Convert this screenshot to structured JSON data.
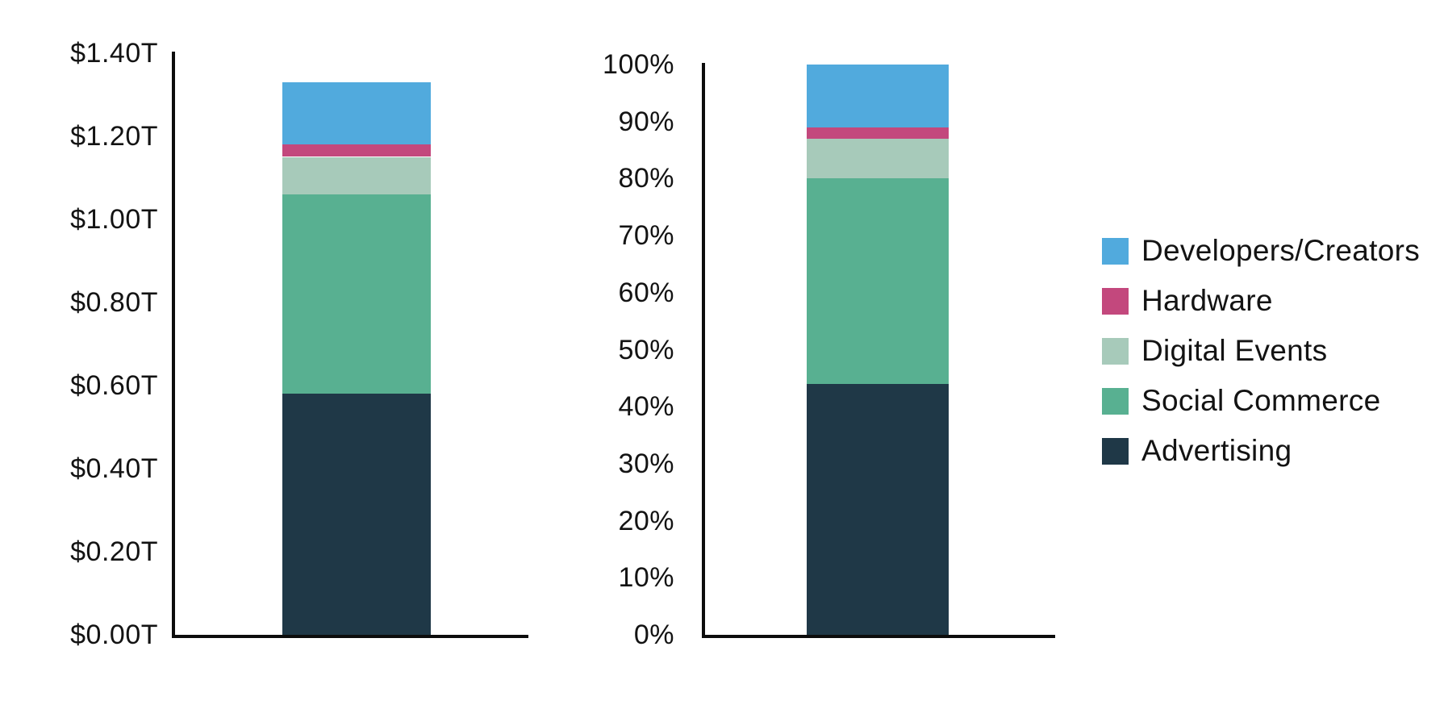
{
  "background": "#ffffff",
  "colors": {
    "advertising": "#1f3847",
    "social_commerce": "#58b091",
    "digital_events": "#a7caba",
    "hardware": "#c3487d",
    "developers_creators": "#51aadd",
    "axis": "#0c0c0c",
    "text": "#131313"
  },
  "legend": {
    "position": "right",
    "items": [
      {
        "label": "Developers/Creators",
        "color_key": "developers_creators"
      },
      {
        "label": "Hardware",
        "color_key": "hardware"
      },
      {
        "label": "Digital Events",
        "color_key": "digital_events"
      },
      {
        "label": "Social Commerce",
        "color_key": "social_commerce"
      },
      {
        "label": "Advertising",
        "color_key": "advertising"
      }
    ]
  },
  "chart_data": [
    {
      "type": "bar",
      "stacked": true,
      "unit": "USD trillions",
      "title": "",
      "xlabel": "",
      "ylabel": "",
      "categories": [
        ""
      ],
      "series": [
        {
          "name": "Advertising",
          "color_key": "advertising",
          "values": [
            0.58
          ]
        },
        {
          "name": "Social Commerce",
          "color_key": "social_commerce",
          "values": [
            0.48
          ]
        },
        {
          "name": "Digital Events",
          "color_key": "digital_events",
          "values": [
            0.09
          ]
        },
        {
          "name": "Hardware",
          "color_key": "hardware",
          "values": [
            0.03
          ]
        },
        {
          "name": "Developers/Creators",
          "color_key": "developers_creators",
          "values": [
            0.15
          ]
        }
      ],
      "total": 1.33,
      "ylim": [
        0,
        1.4
      ],
      "yticks": [
        {
          "label": "$1.40T",
          "value": 1.4
        },
        {
          "label": "$1.20T",
          "value": 1.2
        },
        {
          "label": "$1.00T",
          "value": 1.0
        },
        {
          "label": "$0.80T",
          "value": 0.8
        },
        {
          "label": "$0.60T",
          "value": 0.6
        },
        {
          "label": "$0.40T",
          "value": 0.4
        },
        {
          "label": "$0.20T",
          "value": 0.2
        },
        {
          "label": "$0.00T",
          "value": 0.0
        }
      ],
      "grid": false,
      "legend_position": "right"
    },
    {
      "type": "bar",
      "stacked": true,
      "unit": "percent",
      "title": "",
      "xlabel": "",
      "ylabel": "",
      "categories": [
        ""
      ],
      "series": [
        {
          "name": "Advertising",
          "color_key": "advertising",
          "values": [
            44
          ]
        },
        {
          "name": "Social Commerce",
          "color_key": "social_commerce",
          "values": [
            36
          ]
        },
        {
          "name": "Digital Events",
          "color_key": "digital_events",
          "values": [
            7
          ]
        },
        {
          "name": "Hardware",
          "color_key": "hardware",
          "values": [
            2
          ]
        },
        {
          "name": "Developers/Creators",
          "color_key": "developers_creators",
          "values": [
            11
          ]
        }
      ],
      "total": 100,
      "ylim": [
        0,
        100
      ],
      "yticks": [
        {
          "label": "100%",
          "value": 100
        },
        {
          "label": "90%",
          "value": 90
        },
        {
          "label": "80%",
          "value": 80
        },
        {
          "label": "70%",
          "value": 70
        },
        {
          "label": "60%",
          "value": 60
        },
        {
          "label": "50%",
          "value": 50
        },
        {
          "label": "40%",
          "value": 40
        },
        {
          "label": "30%",
          "value": 30
        },
        {
          "label": "20%",
          "value": 20
        },
        {
          "label": "10%",
          "value": 10
        },
        {
          "label": "0%",
          "value": 0
        }
      ],
      "grid": false,
      "legend_position": "right"
    }
  ]
}
